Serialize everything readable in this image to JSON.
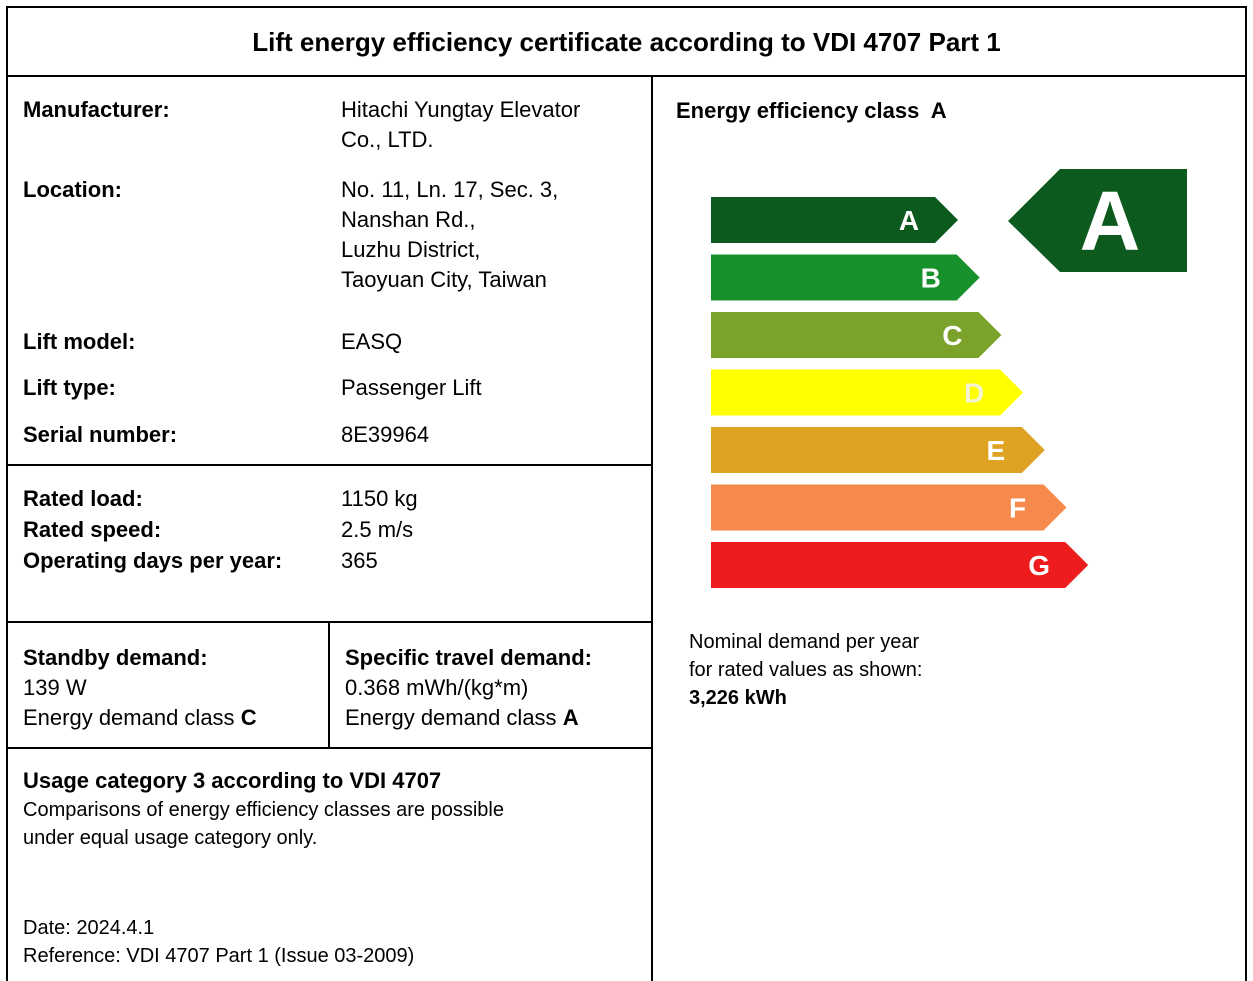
{
  "title": "Lift energy efficiency certificate according to VDI 4707 Part 1",
  "details": [
    {
      "label": "Manufacturer:",
      "value": [
        "Hitachi Yungtay Elevator",
        "Co., LTD."
      ]
    },
    {
      "label": "Location:",
      "value": [
        "No. 11, Ln. 17, Sec. 3,",
        "Nanshan Rd.,",
        "Luzhu District,",
        "Taoyuan City, Taiwan"
      ]
    },
    {
      "label": "Lift model:",
      "value": [
        "EASQ"
      ]
    },
    {
      "label": "Lift type:",
      "value": [
        "Passenger Lift"
      ]
    },
    {
      "label": "Serial number:",
      "value": [
        "8E39964"
      ]
    }
  ],
  "rated": [
    {
      "label": "Rated load:",
      "value": "1150 kg"
    },
    {
      "label": "Rated speed:",
      "value": "2.5 m/s"
    },
    {
      "label": "Operating days per year:",
      "value": "365"
    }
  ],
  "standby": {
    "heading": "Standby demand:",
    "value": "139 W",
    "class_label": "Energy demand class",
    "class": "C"
  },
  "travel": {
    "heading": "Specific travel demand:",
    "value": "0.368 mWh/(kg*m)",
    "class_label": "Energy demand class",
    "class": "A"
  },
  "usage": {
    "heading": "Usage category 3 according to VDI 4707",
    "note": [
      "Comparisons of energy efficiency classes are possible",
      "under equal usage category only."
    ]
  },
  "date": "Date: 2024.4.1",
  "reference": "Reference: VDI 4707 Part 1 (Issue 03-2009)",
  "efficiency": {
    "label": "Energy efficiency class",
    "class": "A",
    "scale": [
      {
        "letter": "A",
        "color": "#0d5a1f"
      },
      {
        "letter": "B",
        "color": "#17912c"
      },
      {
        "letter": "C",
        "color": "#7ba32b"
      },
      {
        "letter": "D",
        "color": "#ffff00"
      },
      {
        "letter": "E",
        "color": "#dfa324"
      },
      {
        "letter": "F",
        "color": "#f58a4c"
      },
      {
        "letter": "G",
        "color": "#ee1c1c"
      }
    ]
  },
  "nominal": {
    "lines": [
      "Nominal demand per year",
      "for rated values as shown:"
    ],
    "value": "3,226 kWh"
  }
}
